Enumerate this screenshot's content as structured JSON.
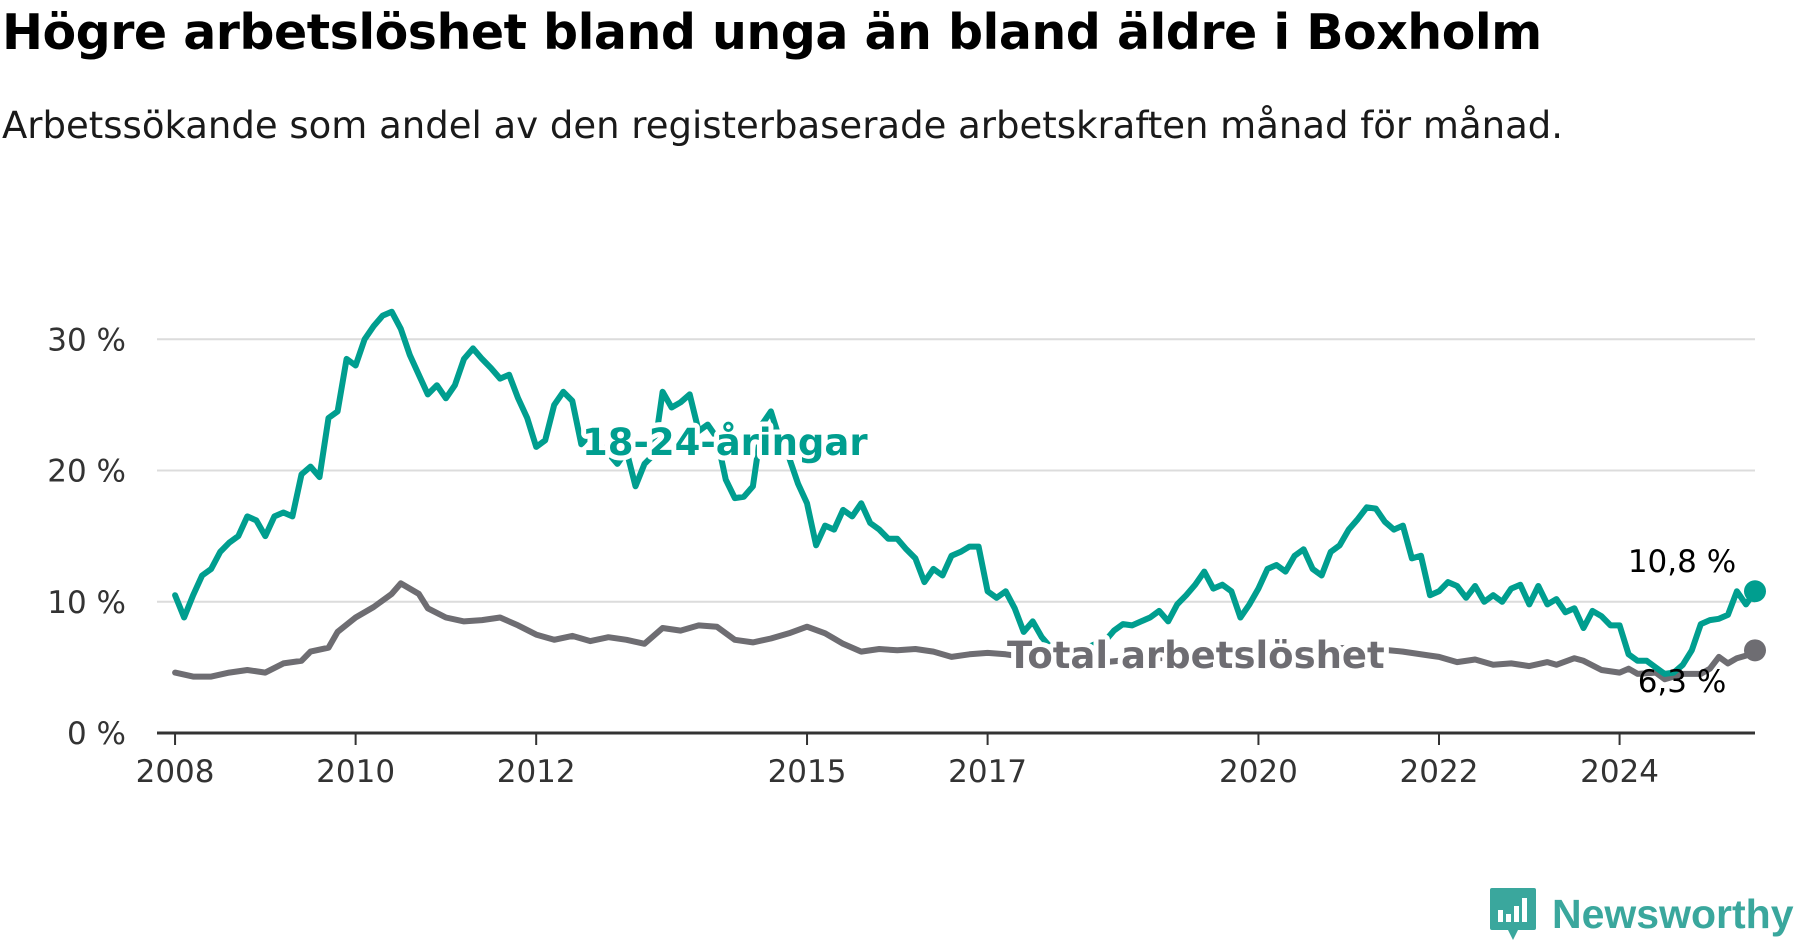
{
  "title": "Högre arbetslöshet bland unga än bland äldre i Boxholm",
  "subtitle": "Arbetssökande som andel av den registerbaserade arbetskraften månad för månad.",
  "brand": "Newsworthy",
  "colors": {
    "youth": "#009e8f",
    "total": "#6e6d72",
    "grid": "#dcdcdc",
    "axis": "#333333",
    "brand": "#3aa79d"
  },
  "chart_data": {
    "type": "line",
    "x_unit": "year",
    "xlim": [
      2007.8,
      2025.5
    ],
    "ylim": [
      0,
      32
    ],
    "y_ticks": [
      {
        "value": 0,
        "label": "0 %"
      },
      {
        "value": 10,
        "label": "10 %"
      },
      {
        "value": 20,
        "label": "20 %"
      },
      {
        "value": 30,
        "label": "30 %"
      }
    ],
    "x_ticks": [
      {
        "value": 2008,
        "label": "2008"
      },
      {
        "value": 2010,
        "label": "2010"
      },
      {
        "value": 2012,
        "label": "2012"
      },
      {
        "value": 2015,
        "label": "2015"
      },
      {
        "value": 2017,
        "label": "2017"
      },
      {
        "value": 2020,
        "label": "2020"
      },
      {
        "value": 2022,
        "label": "2022"
      },
      {
        "value": 2024,
        "label": "2024"
      }
    ],
    "grid": true,
    "legend": "inline labels",
    "series": [
      {
        "name": "18-24-åringar",
        "end_label": "10,8 %",
        "points": [
          [
            2008.0,
            10.5
          ],
          [
            2008.1,
            8.8
          ],
          [
            2008.2,
            10.5
          ],
          [
            2008.3,
            12
          ],
          [
            2008.4,
            12.5
          ],
          [
            2008.5,
            13.8
          ],
          [
            2008.6,
            14.5
          ],
          [
            2008.7,
            15
          ],
          [
            2008.8,
            16.5
          ],
          [
            2008.9,
            16.2
          ],
          [
            2009.0,
            15
          ],
          [
            2009.1,
            16.5
          ],
          [
            2009.2,
            16.8
          ],
          [
            2009.3,
            16.5
          ],
          [
            2009.4,
            19.7
          ],
          [
            2009.5,
            20.3
          ],
          [
            2009.6,
            19.5
          ],
          [
            2009.7,
            24
          ],
          [
            2009.8,
            24.5
          ],
          [
            2009.9,
            28.5
          ],
          [
            2010.0,
            28
          ],
          [
            2010.1,
            30
          ],
          [
            2010.2,
            31
          ],
          [
            2010.3,
            31.8
          ],
          [
            2010.4,
            32.1
          ],
          [
            2010.5,
            30.8
          ],
          [
            2010.6,
            28.8
          ],
          [
            2010.7,
            27.3
          ],
          [
            2010.8,
            25.8
          ],
          [
            2010.9,
            26.5
          ],
          [
            2011.0,
            25.5
          ],
          [
            2011.1,
            26.5
          ],
          [
            2011.2,
            28.5
          ],
          [
            2011.3,
            29.3
          ],
          [
            2011.4,
            28.5
          ],
          [
            2011.5,
            27.8
          ],
          [
            2011.6,
            27
          ],
          [
            2011.7,
            27.3
          ],
          [
            2011.8,
            25.5
          ],
          [
            2011.9,
            24
          ],
          [
            2012.0,
            21.8
          ],
          [
            2012.1,
            22.3
          ],
          [
            2012.2,
            25
          ],
          [
            2012.3,
            26
          ],
          [
            2012.4,
            25.3
          ],
          [
            2012.5,
            22
          ],
          [
            2012.6,
            22.8
          ],
          [
            2012.7,
            22
          ],
          [
            2012.8,
            21.3
          ],
          [
            2012.9,
            20.5
          ],
          [
            2013.0,
            21.5
          ],
          [
            2013.1,
            18.8
          ],
          [
            2013.2,
            20.5
          ],
          [
            2013.3,
            21.2
          ],
          [
            2013.4,
            26
          ],
          [
            2013.5,
            24.8
          ],
          [
            2013.6,
            25.2
          ],
          [
            2013.7,
            25.8
          ],
          [
            2013.8,
            23
          ],
          [
            2013.9,
            23.5
          ],
          [
            2014.0,
            22.5
          ],
          [
            2014.1,
            19.3
          ],
          [
            2014.2,
            17.9
          ],
          [
            2014.3,
            18
          ],
          [
            2014.4,
            18.8
          ],
          [
            2014.5,
            23.5
          ],
          [
            2014.6,
            24.5
          ],
          [
            2014.7,
            22.3
          ],
          [
            2014.8,
            21
          ],
          [
            2014.9,
            19
          ],
          [
            2015.0,
            17.5
          ],
          [
            2015.1,
            14.3
          ],
          [
            2015.2,
            15.8
          ],
          [
            2015.3,
            15.5
          ],
          [
            2015.4,
            17
          ],
          [
            2015.5,
            16.5
          ],
          [
            2015.6,
            17.5
          ],
          [
            2015.7,
            16
          ],
          [
            2015.8,
            15.5
          ],
          [
            2015.9,
            14.8
          ],
          [
            2016.0,
            14.8
          ],
          [
            2016.1,
            14
          ],
          [
            2016.2,
            13.3
          ],
          [
            2016.3,
            11.5
          ],
          [
            2016.4,
            12.5
          ],
          [
            2016.5,
            12
          ],
          [
            2016.6,
            13.5
          ],
          [
            2016.7,
            13.8
          ],
          [
            2016.8,
            14.2
          ],
          [
            2016.9,
            14.2
          ],
          [
            2017.0,
            10.8
          ],
          [
            2017.1,
            10.3
          ],
          [
            2017.2,
            10.8
          ],
          [
            2017.3,
            9.5
          ],
          [
            2017.4,
            7.7
          ],
          [
            2017.5,
            8.5
          ],
          [
            2017.6,
            7.3
          ],
          [
            2017.7,
            6.5
          ],
          [
            2017.8,
            5.5
          ],
          [
            2017.9,
            6.3
          ],
          [
            2018.0,
            5.5
          ],
          [
            2018.1,
            6.5
          ],
          [
            2018.2,
            6.8
          ],
          [
            2018.3,
            7
          ],
          [
            2018.4,
            7.8
          ],
          [
            2018.5,
            8.3
          ],
          [
            2018.6,
            8.2
          ],
          [
            2018.7,
            8.5
          ],
          [
            2018.8,
            8.8
          ],
          [
            2018.9,
            9.3
          ],
          [
            2019.0,
            8.5
          ],
          [
            2019.1,
            9.8
          ],
          [
            2019.2,
            10.5
          ],
          [
            2019.3,
            11.3
          ],
          [
            2019.4,
            12.3
          ],
          [
            2019.5,
            11
          ],
          [
            2019.6,
            11.3
          ],
          [
            2019.7,
            10.8
          ],
          [
            2019.8,
            8.8
          ],
          [
            2019.9,
            9.8
          ],
          [
            2020.0,
            11
          ],
          [
            2020.1,
            12.5
          ],
          [
            2020.2,
            12.8
          ],
          [
            2020.3,
            12.3
          ],
          [
            2020.4,
            13.5
          ],
          [
            2020.5,
            14
          ],
          [
            2020.6,
            12.5
          ],
          [
            2020.7,
            12
          ],
          [
            2020.8,
            13.8
          ],
          [
            2020.9,
            14.3
          ],
          [
            2021.0,
            15.5
          ],
          [
            2021.1,
            16.3
          ],
          [
            2021.2,
            17.2
          ],
          [
            2021.3,
            17.1
          ],
          [
            2021.4,
            16.1
          ],
          [
            2021.5,
            15.5
          ],
          [
            2021.6,
            15.8
          ],
          [
            2021.7,
            13.3
          ],
          [
            2021.8,
            13.5
          ],
          [
            2021.9,
            10.5
          ],
          [
            2022.0,
            10.8
          ],
          [
            2022.1,
            11.5
          ],
          [
            2022.2,
            11.2
          ],
          [
            2022.3,
            10.3
          ],
          [
            2022.4,
            11.2
          ],
          [
            2022.5,
            10
          ],
          [
            2022.6,
            10.5
          ],
          [
            2022.7,
            10
          ],
          [
            2022.8,
            11
          ],
          [
            2022.9,
            11.3
          ],
          [
            2023.0,
            9.8
          ],
          [
            2023.1,
            11.2
          ],
          [
            2023.2,
            9.8
          ],
          [
            2023.3,
            10.2
          ],
          [
            2023.4,
            9.2
          ],
          [
            2023.5,
            9.5
          ],
          [
            2023.6,
            8
          ],
          [
            2023.7,
            9.3
          ],
          [
            2023.8,
            8.9
          ],
          [
            2023.9,
            8.2
          ],
          [
            2024.0,
            8.2
          ],
          [
            2024.1,
            6
          ],
          [
            2024.2,
            5.5
          ],
          [
            2024.3,
            5.5
          ],
          [
            2024.4,
            5
          ],
          [
            2024.5,
            4.5
          ],
          [
            2024.6,
            4.6
          ],
          [
            2024.7,
            5.2
          ],
          [
            2024.8,
            6.3
          ],
          [
            2024.9,
            8.3
          ],
          [
            2025.0,
            8.6
          ],
          [
            2025.1,
            8.7
          ],
          [
            2025.2,
            9
          ],
          [
            2025.3,
            10.8
          ],
          [
            2025.4,
            9.8
          ],
          [
            2025.5,
            10.8
          ]
        ]
      },
      {
        "name": "Total arbetslöshet",
        "end_label": "6,3 %",
        "points": [
          [
            2008.0,
            4.6
          ],
          [
            2008.2,
            4.3
          ],
          [
            2008.4,
            4.3
          ],
          [
            2008.6,
            4.6
          ],
          [
            2008.8,
            4.8
          ],
          [
            2009.0,
            4.6
          ],
          [
            2009.2,
            5.3
          ],
          [
            2009.4,
            5.5
          ],
          [
            2009.5,
            6.2
          ],
          [
            2009.7,
            6.5
          ],
          [
            2009.8,
            7.7
          ],
          [
            2010.0,
            8.8
          ],
          [
            2010.2,
            9.6
          ],
          [
            2010.4,
            10.6
          ],
          [
            2010.5,
            11.4
          ],
          [
            2010.7,
            10.6
          ],
          [
            2010.8,
            9.5
          ],
          [
            2011.0,
            8.8
          ],
          [
            2011.2,
            8.5
          ],
          [
            2011.4,
            8.6
          ],
          [
            2011.6,
            8.8
          ],
          [
            2011.8,
            8.2
          ],
          [
            2012.0,
            7.5
          ],
          [
            2012.2,
            7.1
          ],
          [
            2012.4,
            7.4
          ],
          [
            2012.6,
            7
          ],
          [
            2012.8,
            7.3
          ],
          [
            2013.0,
            7.1
          ],
          [
            2013.2,
            6.8
          ],
          [
            2013.4,
            8
          ],
          [
            2013.6,
            7.8
          ],
          [
            2013.8,
            8.2
          ],
          [
            2014.0,
            8.1
          ],
          [
            2014.2,
            7.1
          ],
          [
            2014.4,
            6.9
          ],
          [
            2014.6,
            7.2
          ],
          [
            2014.8,
            7.6
          ],
          [
            2015.0,
            8.1
          ],
          [
            2015.2,
            7.6
          ],
          [
            2015.4,
            6.8
          ],
          [
            2015.6,
            6.2
          ],
          [
            2015.8,
            6.4
          ],
          [
            2016.0,
            6.3
          ],
          [
            2016.2,
            6.4
          ],
          [
            2016.4,
            6.2
          ],
          [
            2016.6,
            5.8
          ],
          [
            2016.8,
            6
          ],
          [
            2017.0,
            6.1
          ],
          [
            2017.2,
            6
          ],
          [
            2017.4,
            5.8
          ],
          [
            2017.6,
            5.4
          ],
          [
            2017.8,
            5.2
          ],
          [
            2018.0,
            5.2
          ],
          [
            2018.3,
            5.4
          ],
          [
            2018.6,
            5.6
          ],
          [
            2018.9,
            5.7
          ],
          [
            2019.2,
            5.8
          ],
          [
            2019.5,
            5.9
          ],
          [
            2019.8,
            6
          ],
          [
            2020.1,
            6.2
          ],
          [
            2020.4,
            6.3
          ],
          [
            2020.7,
            6.4
          ],
          [
            2021.0,
            6.5
          ],
          [
            2021.3,
            6.4
          ],
          [
            2021.6,
            6.2
          ],
          [
            2021.9,
            5.9
          ],
          [
            2022.0,
            5.8
          ],
          [
            2022.2,
            5.4
          ],
          [
            2022.4,
            5.6
          ],
          [
            2022.6,
            5.2
          ],
          [
            2022.8,
            5.3
          ],
          [
            2023.0,
            5.1
          ],
          [
            2023.2,
            5.4
          ],
          [
            2023.3,
            5.2
          ],
          [
            2023.5,
            5.7
          ],
          [
            2023.6,
            5.5
          ],
          [
            2023.8,
            4.8
          ],
          [
            2024.0,
            4.6
          ],
          [
            2024.1,
            4.9
          ],
          [
            2024.2,
            4.5
          ],
          [
            2024.4,
            4.6
          ],
          [
            2024.5,
            4.1
          ],
          [
            2024.7,
            4.5
          ],
          [
            2024.9,
            4.5
          ],
          [
            2025.0,
            4.9
          ],
          [
            2025.1,
            5.8
          ],
          [
            2025.2,
            5.3
          ],
          [
            2025.3,
            5.7
          ],
          [
            2025.4,
            5.9
          ],
          [
            2025.5,
            6.3
          ]
        ]
      }
    ]
  }
}
